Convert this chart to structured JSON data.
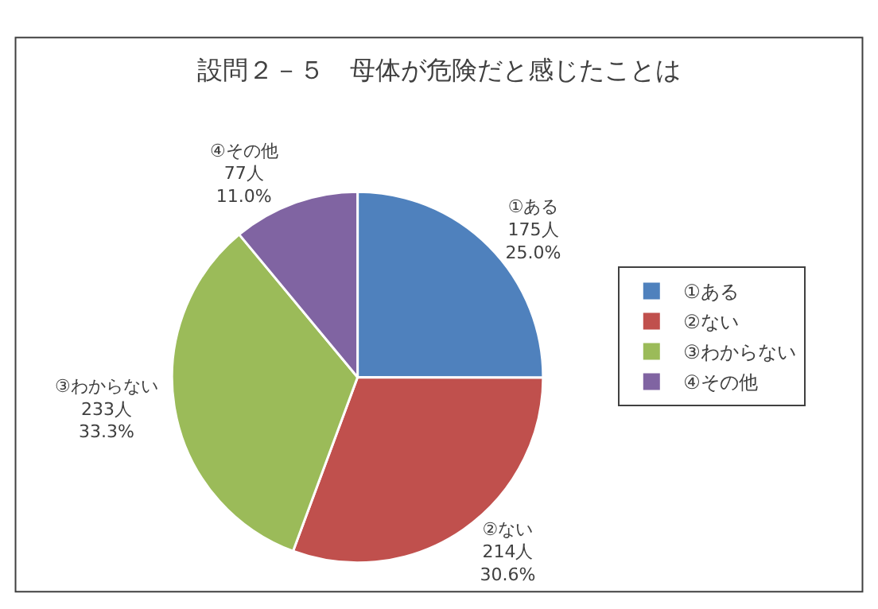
{
  "chart_data": {
    "type": "pie",
    "title": "設問２－５　母体が危険だと感じたことは",
    "categories": [
      "①ある",
      "②ない",
      "③わからない",
      "④その他"
    ],
    "values": [
      175,
      214,
      233,
      77
    ],
    "colors": [
      "#4f81bd",
      "#c0504d",
      "#9bbb59",
      "#8064a2"
    ],
    "value_labels": [
      "175人\n25.0%",
      "214人\n30.6%",
      "233人\n33.3%",
      "77人\n11.0%"
    ],
    "legend": "right"
  }
}
